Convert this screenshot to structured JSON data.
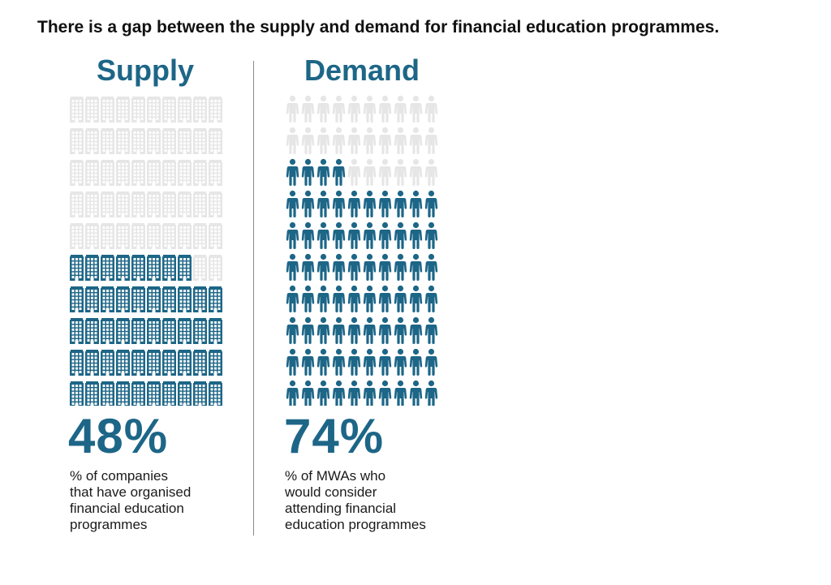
{
  "headline": "There is a gap between the supply and demand for financial education programmes.",
  "colors": {
    "filled": "#1d6687",
    "empty": "#e6e6e6",
    "divider": "#8a8a8a"
  },
  "chart_data": [
    {
      "type": "pictogram",
      "icon": "building-icon",
      "title": "Supply",
      "total_icons": 100,
      "filled_icons": 48,
      "value_percent": 48,
      "value_label": "48%",
      "caption_lines": [
        "% of companies",
        "that have organised",
        "financial education",
        "programmes"
      ]
    },
    {
      "type": "pictogram",
      "icon": "person-icon",
      "title": "Demand",
      "total_icons": 100,
      "filled_icons": 74,
      "value_percent": 74,
      "value_label": "74%",
      "caption_lines": [
        "% of MWAs who",
        "would consider",
        "attending financial",
        "education programmes"
      ]
    }
  ]
}
